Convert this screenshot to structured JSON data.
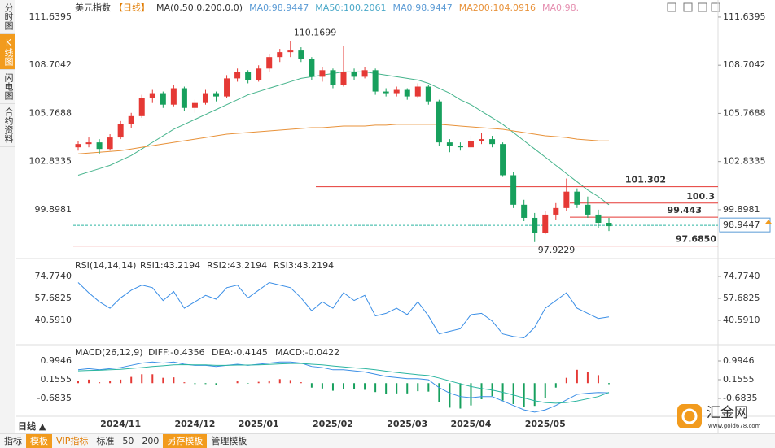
{
  "chart_data": {
    "type": "candlestick",
    "instrument": "美元指数",
    "period": "【日线】",
    "legend": [
      {
        "text": "MA(0,50,0,200,0,0)",
        "color": "#333333"
      },
      {
        "text": "MA0:98.9447",
        "color": "#5b9bd5"
      },
      {
        "text": "MA50:100.2061",
        "color": "#4aa8c8"
      },
      {
        "text": "MA0:98.9447",
        "color": "#5b9bd5"
      },
      {
        "text": "MA200:104.0916",
        "color": "#e8923a"
      },
      {
        "text": "MA0:98.",
        "color": "#e58fb0"
      }
    ],
    "up_color": "#e53935",
    "down_color": "#17a05d",
    "ohlc": [
      [
        103.7,
        104.1,
        103.5,
        103.9
      ],
      [
        103.9,
        104.3,
        103.7,
        104.0
      ],
      [
        104.0,
        104.2,
        103.3,
        103.6
      ],
      [
        103.6,
        104.5,
        103.5,
        104.3
      ],
      [
        104.3,
        105.3,
        104.2,
        105.1
      ],
      [
        105.1,
        105.8,
        104.9,
        105.6
      ],
      [
        105.6,
        106.9,
        105.5,
        106.7
      ],
      [
        106.7,
        107.2,
        106.4,
        107.0
      ],
      [
        107.0,
        107.1,
        106.1,
        106.3
      ],
      [
        106.3,
        107.5,
        106.2,
        107.3
      ],
      [
        107.3,
        107.4,
        105.9,
        106.1
      ],
      [
        106.1,
        106.6,
        105.8,
        106.4
      ],
      [
        106.4,
        107.2,
        106.3,
        107.0
      ],
      [
        107.0,
        107.1,
        106.5,
        106.8
      ],
      [
        106.8,
        108.1,
        106.7,
        107.9
      ],
      [
        107.9,
        108.5,
        107.7,
        108.3
      ],
      [
        108.3,
        108.4,
        107.6,
        107.8
      ],
      [
        107.8,
        108.7,
        107.7,
        108.5
      ],
      [
        108.5,
        109.4,
        108.3,
        109.2
      ],
      [
        109.2,
        109.7,
        108.9,
        109.5
      ],
      [
        109.5,
        110.1699,
        109.2,
        109.6
      ],
      [
        109.6,
        109.8,
        108.9,
        109.1
      ],
      [
        109.1,
        109.2,
        107.8,
        108.0
      ],
      [
        108.0,
        108.6,
        107.7,
        108.4
      ],
      [
        108.4,
        108.5,
        107.3,
        107.5
      ],
      [
        107.5,
        109.9,
        107.4,
        108.3
      ],
      [
        108.3,
        108.5,
        107.8,
        108.0
      ],
      [
        108.0,
        108.6,
        107.9,
        108.4
      ],
      [
        108.4,
        108.5,
        106.9,
        107.1
      ],
      [
        107.1,
        107.3,
        106.8,
        107.0
      ],
      [
        107.0,
        107.4,
        106.8,
        107.2
      ],
      [
        107.2,
        107.3,
        106.6,
        106.8
      ],
      [
        106.8,
        107.6,
        106.7,
        107.4
      ],
      [
        107.4,
        107.5,
        106.3,
        106.5
      ],
      [
        106.5,
        106.6,
        103.8,
        104.0
      ],
      [
        104.0,
        104.2,
        103.4,
        103.8
      ],
      [
        103.8,
        104.0,
        103.5,
        103.7
      ],
      [
        103.7,
        104.4,
        103.6,
        104.1
      ],
      [
        104.1,
        104.6,
        103.9,
        104.2
      ],
      [
        104.2,
        104.4,
        103.7,
        103.9
      ],
      [
        103.9,
        104.0,
        101.9,
        102.0
      ],
      [
        102.0,
        102.2,
        100.0,
        100.2
      ],
      [
        100.2,
        100.5,
        99.2,
        99.4
      ],
      [
        99.4,
        99.7,
        97.9229,
        98.5
      ],
      [
        98.5,
        99.8,
        98.4,
        99.6
      ],
      [
        99.6,
        100.3,
        99.3,
        100.0
      ],
      [
        100.0,
        101.8,
        99.8,
        101.0
      ],
      [
        101.0,
        101.2,
        100.0,
        100.2
      ],
      [
        100.2,
        100.7,
        99.4,
        99.6
      ],
      [
        99.6,
        99.9,
        98.8,
        99.1
      ],
      [
        99.1,
        99.4,
        98.6,
        98.9
      ]
    ],
    "categories": [
      null,
      null,
      null,
      null,
      "2024/11",
      null,
      null,
      null,
      null,
      null,
      null,
      "2024/12",
      null,
      null,
      null,
      null,
      null,
      "2025/01",
      null,
      null,
      null,
      null,
      null,
      null,
      "2025/02",
      null,
      null,
      null,
      null,
      null,
      null,
      "2025/03",
      null,
      null,
      null,
      null,
      null,
      "2025/04",
      null,
      null,
      null,
      null,
      null,
      null,
      "2025/05",
      null,
      null,
      null,
      null,
      null,
      null
    ],
    "ma_series": [
      {
        "name": "MA50",
        "color": "#46b48c",
        "values": [
          102.0,
          102.2,
          102.4,
          102.6,
          102.9,
          103.2,
          103.6,
          104.0,
          104.4,
          104.8,
          105.1,
          105.4,
          105.7,
          106.0,
          106.3,
          106.6,
          106.9,
          107.1,
          107.3,
          107.5,
          107.7,
          107.9,
          108.0,
          108.1,
          108.2,
          108.3,
          108.3,
          108.3,
          108.2,
          108.1,
          108.0,
          107.9,
          107.8,
          107.6,
          107.3,
          107.0,
          106.6,
          106.3,
          105.9,
          105.5,
          105.1,
          104.6,
          104.1,
          103.6,
          103.1,
          102.6,
          102.1,
          101.6,
          101.1,
          100.7,
          100.2
        ]
      },
      {
        "name": "MA200",
        "color": "#e8923a",
        "values": [
          103.3,
          103.35,
          103.4,
          103.45,
          103.5,
          103.6,
          103.7,
          103.8,
          103.9,
          104.0,
          104.1,
          104.2,
          104.3,
          104.4,
          104.5,
          104.55,
          104.6,
          104.65,
          104.7,
          104.75,
          104.8,
          104.85,
          104.9,
          104.9,
          104.95,
          105.0,
          105.0,
          105.0,
          105.05,
          105.05,
          105.1,
          105.1,
          105.1,
          105.1,
          105.1,
          105.05,
          105.0,
          104.95,
          104.9,
          104.85,
          104.8,
          104.7,
          104.6,
          104.5,
          104.4,
          104.35,
          104.3,
          104.2,
          104.15,
          104.1,
          104.09
        ]
      }
    ],
    "ylim": [
      97.07,
      112.28
    ],
    "yticks": [
      111.6395,
      108.7042,
      105.7688,
      102.8335,
      99.8981
    ],
    "levels": [
      {
        "value": 101.302,
        "color": "#e53935"
      },
      {
        "value": 100.3,
        "color": "#e53935"
      },
      {
        "value": 99.443,
        "color": "#e53935"
      },
      {
        "value": {
          "value": 97.685,
          "label": "97.6850"
        },
        "color": "#e53935"
      }
    ],
    "last": 98.9447,
    "last_color": "#2bb5a0",
    "rsi": {
      "title": "RSI(14,14,14)",
      "legend": [
        "RSI1:43.2194",
        "RSI2:43.2194",
        "RSI3:43.2194"
      ],
      "color": "#3a8ee6",
      "ylim": [
        24.1,
        87.4
      ],
      "yticks": [
        {
          "value": 74.774,
          "label": "74.7740"
        },
        57.6825,
        {
          "value": 40.591,
          "label": "40.5910"
        }
      ],
      "values": [
        70,
        62,
        55,
        50,
        58,
        64,
        68,
        66,
        56,
        63,
        50,
        55,
        60,
        57,
        66,
        68,
        58,
        64,
        70,
        68,
        66,
        58,
        48,
        55,
        50,
        62,
        56,
        60,
        44,
        46,
        50,
        45,
        55,
        44,
        30,
        32,
        34,
        45,
        46,
        40,
        30,
        28,
        27,
        35,
        50,
        56,
        62,
        50,
        46,
        42,
        43.2194
      ]
    },
    "macd": {
      "title": "MACD(26,12,9)",
      "legend": [
        "DIFF:-0.4356",
        "DEA:-0.4145",
        "MACD:-0.0422"
      ],
      "ylim": [
        -1.414,
        1.578
      ],
      "yticks": [
        0.9946,
        0.1555,
        -0.6835
      ],
      "diff": {
        "color": "#3a8ee6",
        "values": [
          0.6,
          0.65,
          0.6,
          0.65,
          0.7,
          0.8,
          0.9,
          0.95,
          0.9,
          0.95,
          0.85,
          0.8,
          0.8,
          0.75,
          0.8,
          0.85,
          0.8,
          0.85,
          0.9,
          0.95,
          0.95,
          0.9,
          0.75,
          0.7,
          0.6,
          0.6,
          0.55,
          0.5,
          0.4,
          0.3,
          0.25,
          0.2,
          0.2,
          0.15,
          -0.2,
          -0.45,
          -0.6,
          -0.65,
          -0.6,
          -0.6,
          -0.8,
          -1.0,
          -1.2,
          -1.3,
          -1.2,
          -1.0,
          -0.75,
          -0.5,
          -0.45,
          -0.42,
          -0.4356
        ]
      },
      "dea": {
        "color": "#2bb5a0",
        "values": [
          0.55,
          0.57,
          0.58,
          0.6,
          0.62,
          0.66,
          0.7,
          0.75,
          0.78,
          0.82,
          0.83,
          0.82,
          0.82,
          0.8,
          0.8,
          0.81,
          0.81,
          0.82,
          0.84,
          0.86,
          0.88,
          0.88,
          0.85,
          0.82,
          0.77,
          0.73,
          0.69,
          0.65,
          0.6,
          0.54,
          0.48,
          0.43,
          0.38,
          0.34,
          0.23,
          0.1,
          -0.03,
          -0.15,
          -0.24,
          -0.31,
          -0.41,
          -0.53,
          -0.66,
          -0.79,
          -0.87,
          -0.9,
          -0.87,
          -0.8,
          -0.7,
          -0.6,
          -0.4145
        ]
      },
      "hist": [
        0.1,
        0.16,
        0.04,
        0.1,
        0.16,
        0.28,
        0.4,
        0.4,
        0.24,
        0.26,
        0.04,
        -0.04,
        -0.04,
        -0.1,
        0,
        0.08,
        -0.02,
        0.06,
        0.12,
        0.18,
        0.14,
        0.04,
        -0.2,
        -0.24,
        -0.34,
        -0.26,
        -0.28,
        -0.3,
        -0.4,
        -0.48,
        -0.46,
        -0.46,
        -0.36,
        -0.38,
        -0.86,
        -1.1,
        -1.14,
        -1.0,
        -0.72,
        -0.58,
        -0.78,
        -0.94,
        -1.08,
        -1.02,
        -0.66,
        -0.2,
        0.24,
        0.6,
        0.5,
        0.36,
        -0.0422
      ]
    }
  },
  "ui": {
    "tabs": [
      "分时图",
      "K线图",
      "闪电图",
      "合约资料"
    ],
    "period_button": "日线 ▲",
    "toolbar": [
      "指标",
      "模板",
      "VIP指标",
      "标准",
      "50",
      "200",
      "另存模板",
      "管理模板"
    ],
    "watermark": "汇金网",
    "watermark_url": "www.gold678.com"
  }
}
